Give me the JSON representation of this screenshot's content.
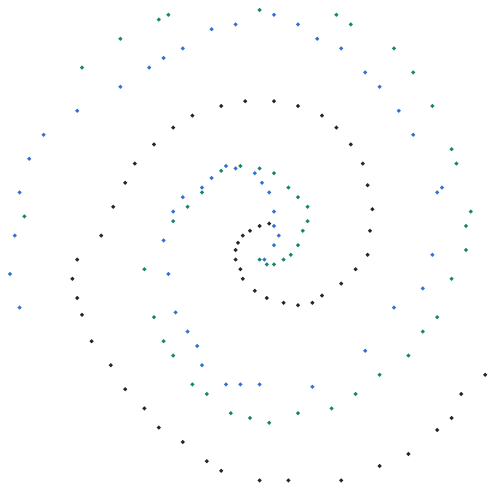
{
  "chart_data": {
    "type": "scatter",
    "title": "",
    "xlabel": "",
    "ylabel": "",
    "xlim": [
      -1.0,
      1.0
    ],
    "ylim": [
      -1.0,
      1.0
    ],
    "grid": false,
    "legend": "none",
    "series": [
      {
        "color": "#2a1f24",
        "marker": "diamond",
        "points": [
          [
            0.08,
            0.11
          ],
          [
            0.04,
            0.1
          ],
          [
            0.0,
            0.08
          ],
          [
            -0.03,
            0.06
          ],
          [
            -0.05,
            0.03
          ],
          [
            -0.06,
            0.0
          ],
          [
            -0.06,
            -0.04
          ],
          [
            -0.04,
            -0.08
          ],
          [
            -0.03,
            -0.12
          ],
          [
            0.02,
            -0.17
          ],
          [
            0.07,
            -0.2
          ],
          [
            0.14,
            -0.22
          ],
          [
            0.2,
            -0.23
          ],
          [
            0.26,
            -0.22
          ],
          [
            0.3,
            -0.19
          ],
          [
            0.38,
            -0.14
          ],
          [
            0.44,
            -0.08
          ],
          [
            0.49,
            -0.02
          ],
          [
            0.5,
            0.08
          ],
          [
            0.51,
            0.17
          ],
          [
            0.49,
            0.27
          ],
          [
            0.47,
            0.36
          ],
          [
            0.42,
            0.44
          ],
          [
            0.36,
            0.51
          ],
          [
            0.3,
            0.56
          ],
          [
            0.2,
            0.6
          ],
          [
            0.1,
            0.62
          ],
          [
            -0.02,
            0.62
          ],
          [
            -0.12,
            0.6
          ],
          [
            -0.24,
            0.56
          ],
          [
            -0.32,
            0.51
          ],
          [
            -0.4,
            0.44
          ],
          [
            -0.48,
            0.36
          ],
          [
            -0.52,
            0.28
          ],
          [
            -0.57,
            0.18
          ],
          [
            -0.62,
            0.06
          ],
          [
            -0.72,
            -0.04
          ],
          [
            -0.74,
            -0.12
          ],
          [
            -0.72,
            -0.2
          ],
          [
            -0.7,
            -0.27
          ],
          [
            -0.66,
            -0.38
          ],
          [
            -0.58,
            -0.48
          ],
          [
            -0.52,
            -0.58
          ],
          [
            -0.44,
            -0.66
          ],
          [
            -0.38,
            -0.74
          ],
          [
            -0.28,
            -0.8
          ],
          [
            -0.18,
            -0.88
          ],
          [
            -0.12,
            -0.92
          ],
          [
            0.04,
            -0.96
          ],
          [
            0.16,
            -0.96
          ],
          [
            0.38,
            -0.96
          ],
          [
            0.54,
            -0.9
          ],
          [
            0.66,
            -0.85
          ],
          [
            0.78,
            -0.75
          ],
          [
            0.84,
            -0.7
          ],
          [
            0.88,
            -0.6
          ],
          [
            0.98,
            -0.52
          ]
        ]
      },
      {
        "color": "#2f6fd6",
        "marker": "diamond",
        "points": [
          [
            0.06,
            -0.04
          ],
          [
            0.1,
            0.02
          ],
          [
            0.12,
            0.06
          ],
          [
            0.1,
            0.1
          ],
          [
            0.1,
            0.16
          ],
          [
            0.08,
            0.24
          ],
          [
            0.05,
            0.28
          ],
          [
            0.02,
            0.32
          ],
          [
            -0.06,
            0.34
          ],
          [
            -0.1,
            0.35
          ],
          [
            -0.16,
            0.3
          ],
          [
            -0.2,
            0.26
          ],
          [
            -0.28,
            0.22
          ],
          [
            -0.32,
            0.16
          ],
          [
            -0.36,
            0.04
          ],
          [
            -0.34,
            -0.1
          ],
          [
            -0.31,
            -0.26
          ],
          [
            -0.26,
            -0.34
          ],
          [
            -0.22,
            -0.4
          ],
          [
            -0.2,
            -0.48
          ],
          [
            -0.1,
            -0.56
          ],
          [
            -0.04,
            -0.56
          ],
          [
            0.04,
            -0.56
          ],
          [
            0.26,
            -0.57
          ],
          [
            0.48,
            -0.42
          ],
          [
            0.6,
            -0.24
          ],
          [
            0.72,
            -0.16
          ],
          [
            0.76,
            -0.02
          ],
          [
            0.78,
            0.24
          ],
          [
            0.8,
            0.26
          ],
          [
            0.68,
            0.48
          ],
          [
            0.62,
            0.58
          ],
          [
            0.54,
            0.68
          ],
          [
            0.48,
            0.74
          ],
          [
            0.38,
            0.84
          ],
          [
            0.28,
            0.88
          ],
          [
            0.2,
            0.94
          ],
          [
            0.1,
            0.98
          ],
          [
            -0.06,
            0.94
          ],
          [
            -0.16,
            0.92
          ],
          [
            -0.28,
            0.84
          ],
          [
            -0.36,
            0.8
          ],
          [
            -0.42,
            0.76
          ],
          [
            -0.54,
            0.68
          ],
          [
            -0.72,
            0.58
          ],
          [
            -0.86,
            0.48
          ],
          [
            -0.92,
            0.38
          ],
          [
            -0.96,
            0.24
          ],
          [
            -0.98,
            0.06
          ],
          [
            -1.0,
            -0.1
          ],
          [
            -0.96,
            -0.24
          ]
        ]
      },
      {
        "color": "#12866a",
        "marker": "diamond",
        "points": [
          [
            0.04,
            -0.04
          ],
          [
            0.07,
            -0.06
          ],
          [
            0.1,
            -0.06
          ],
          [
            0.14,
            -0.04
          ],
          [
            0.17,
            -0.02
          ],
          [
            0.2,
            0.02
          ],
          [
            0.22,
            0.08
          ],
          [
            0.24,
            0.12
          ],
          [
            0.24,
            0.18
          ],
          [
            0.2,
            0.22
          ],
          [
            0.16,
            0.26
          ],
          [
            0.1,
            0.32
          ],
          [
            0.04,
            0.34
          ],
          [
            -0.04,
            0.35
          ],
          [
            -0.12,
            0.33
          ],
          [
            -0.2,
            0.24
          ],
          [
            -0.26,
            0.18
          ],
          [
            -0.32,
            0.12
          ],
          [
            -0.44,
            -0.08
          ],
          [
            -0.4,
            -0.28
          ],
          [
            -0.36,
            -0.38
          ],
          [
            -0.32,
            -0.44
          ],
          [
            -0.24,
            -0.56
          ],
          [
            -0.18,
            -0.6
          ],
          [
            -0.08,
            -0.68
          ],
          [
            0.0,
            -0.7
          ],
          [
            0.08,
            -0.72
          ],
          [
            0.2,
            -0.68
          ],
          [
            0.34,
            -0.66
          ],
          [
            0.44,
            -0.6
          ],
          [
            0.54,
            -0.52
          ],
          [
            0.66,
            -0.44
          ],
          [
            0.72,
            -0.34
          ],
          [
            0.78,
            -0.28
          ],
          [
            0.84,
            -0.12
          ],
          [
            0.9,
            0.0
          ],
          [
            0.9,
            0.1
          ],
          [
            0.92,
            0.16
          ],
          [
            0.86,
            0.36
          ],
          [
            0.84,
            0.42
          ],
          [
            0.76,
            0.6
          ],
          [
            0.68,
            0.74
          ],
          [
            0.6,
            0.84
          ],
          [
            0.42,
            0.94
          ],
          [
            0.36,
            0.98
          ],
          [
            0.04,
            1.0
          ],
          [
            -0.34,
            0.98
          ],
          [
            -0.38,
            0.96
          ],
          [
            -0.54,
            0.88
          ],
          [
            -0.7,
            0.76
          ],
          [
            -0.94,
            0.14
          ]
        ]
      }
    ]
  }
}
